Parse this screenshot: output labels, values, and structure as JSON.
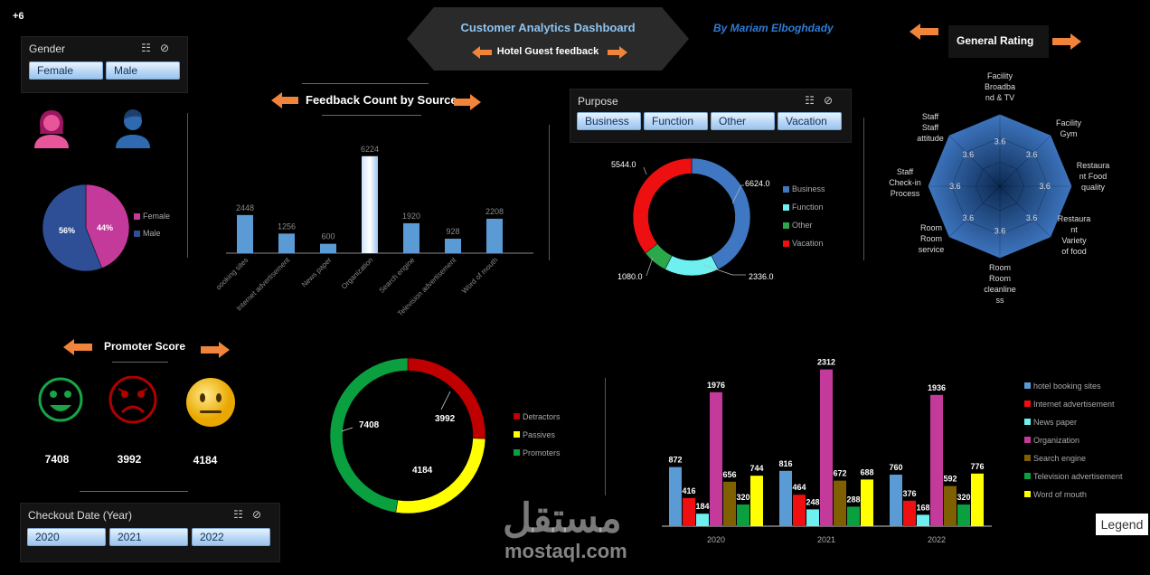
{
  "corner_badge": "+6",
  "header": {
    "title": "Customer Analytics Dashboard",
    "subtitle": "Hotel Guest feedback",
    "author": "By Mariam Elboghdady"
  },
  "colors": {
    "accent_orange": "#f0843a",
    "title_blue": "#8ec3f0",
    "author_blue": "#2e7bd6"
  },
  "gender_slicer": {
    "title": "Gender",
    "options": [
      "Female",
      "Male"
    ]
  },
  "purpose_slicer": {
    "title": "Purpose",
    "options": [
      "Business",
      "Function",
      "Other",
      "Vacation"
    ]
  },
  "year_slicer": {
    "title": "Checkout Date (Year)",
    "options": [
      "2020",
      "2021",
      "2022"
    ]
  },
  "sections": {
    "feedback": "Feedback Count by Source",
    "rating": "General Rating",
    "promoter": "Promoter Score"
  },
  "promoter_scores": [
    {
      "face": "smile-icon",
      "value": "7408"
    },
    {
      "face": "sad-icon",
      "value": "3992"
    },
    {
      "face": "neutral-icon",
      "value": "4184"
    }
  ],
  "legend_button": "Legend",
  "watermark": {
    "arabic": "مستقل",
    "latin": "mostaql.com"
  },
  "chart_data": [
    {
      "id": "gender_pie",
      "type": "pie",
      "categories": [
        "Female",
        "Male"
      ],
      "values": [
        44,
        56
      ],
      "labels": [
        "44%",
        "56%"
      ],
      "colors": [
        "#c43a9a",
        "#2e4f96"
      ],
      "legend": "right"
    },
    {
      "id": "feedback_by_source",
      "type": "bar",
      "categories": [
        "hotel booking sites",
        "Internet advertisement",
        "News paper",
        "Organization",
        "Search engine",
        "Television advertisement",
        "Word of mouth"
      ],
      "values": [
        2448,
        1256,
        600,
        6224,
        1920,
        928,
        2208
      ],
      "ylim": [
        0,
        6500
      ]
    },
    {
      "id": "purpose_donut",
      "type": "pie",
      "categories": [
        "Business",
        "Function",
        "Other",
        "Vacation"
      ],
      "values": [
        6624.0,
        2336.0,
        1080.0,
        5544.0
      ],
      "labels": [
        "6624.0",
        "2336.0",
        "1080.0",
        "5544.0"
      ],
      "colors": [
        "#3f77c2",
        "#6ef0f0",
        "#2aa84a",
        "#ee1010"
      ],
      "legend": "right"
    },
    {
      "id": "general_rating_radar",
      "type": "radar",
      "categories": [
        "Facility Broadband & TV",
        "Facility Gym",
        "Restaurant Food quality",
        "Restaurant Variety of food",
        "Room Room cleanliness",
        "Room Room service",
        "Staff Check-in Process",
        "Staff Staff attitude"
      ],
      "axis_labels": [
        [
          "Facility",
          "Broadba",
          "nd & TV"
        ],
        [
          "Facility",
          "Gym"
        ],
        [
          "Restaura",
          "nt Food",
          "quality"
        ],
        [
          "Restaura",
          "nt",
          "Variety",
          "of food"
        ],
        [
          "Room",
          "Room",
          "cleanline",
          "ss"
        ],
        [
          "Room",
          "Room",
          "service"
        ],
        [
          "Staff",
          "Check-in",
          "Process"
        ],
        [
          "Staff",
          "Staff",
          "attitude"
        ]
      ],
      "values": [
        3.6,
        3.6,
        3.6,
        3.6,
        3.6,
        3.6,
        3.6,
        3.6
      ]
    },
    {
      "id": "promoter_donut",
      "type": "pie",
      "categories": [
        "Detractors",
        "Passives",
        "Promoters"
      ],
      "values": [
        3992,
        4184,
        7408
      ],
      "labels": [
        "3992",
        "4184",
        "7408"
      ],
      "colors": [
        "#c00000",
        "#ffff00",
        "#0aa040"
      ],
      "legend": "right"
    },
    {
      "id": "source_by_year",
      "type": "bar",
      "categories": [
        "2020",
        "2021",
        "2022"
      ],
      "series": [
        {
          "name": "hotel booking sites",
          "color": "#5b9bd5",
          "values": [
            872,
            816,
            760
          ]
        },
        {
          "name": "Internet advertisement",
          "color": "#ee1010",
          "values": [
            416,
            464,
            376
          ]
        },
        {
          "name": "News paper",
          "color": "#6ef0f0",
          "values": [
            184,
            248,
            168
          ]
        },
        {
          "name": "Organization",
          "color": "#c43a9a",
          "values": [
            1976,
            2312,
            1936
          ]
        },
        {
          "name": "Search engine",
          "color": "#7f6000",
          "values": [
            656,
            672,
            592
          ]
        },
        {
          "name": "Television advertisement",
          "color": "#0aa040",
          "values": [
            320,
            288,
            320
          ]
        },
        {
          "name": "Word of mouth",
          "color": "#ffff00",
          "values": [
            744,
            688,
            776
          ]
        }
      ],
      "ylim": [
        0,
        2400
      ],
      "legend": "right"
    }
  ]
}
